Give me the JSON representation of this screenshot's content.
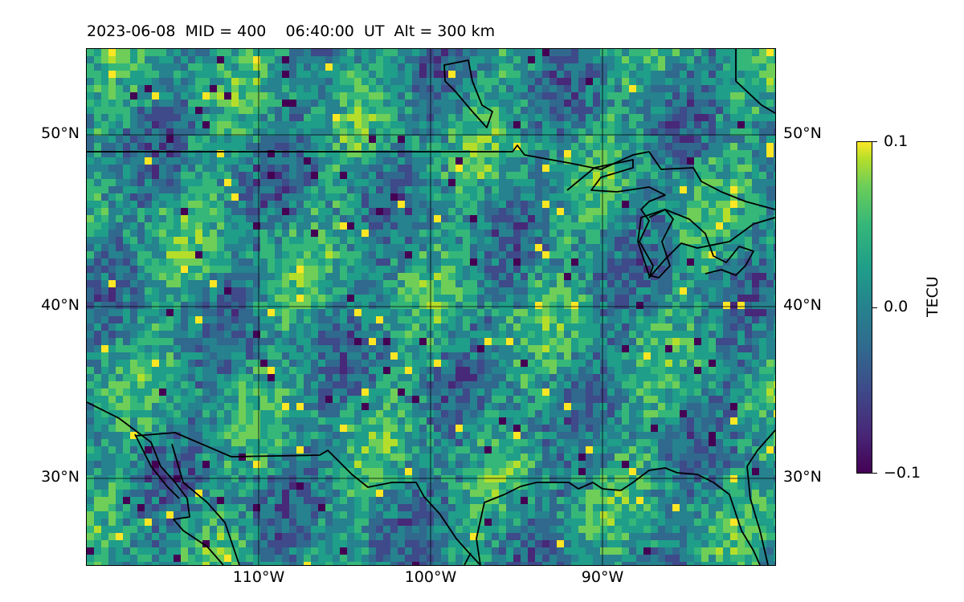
{
  "map": {
    "title": "2023-06-08  MID = 400    06:40:00  UT  Alt = 300 km",
    "lat_labels": [
      "50°N",
      "40°N",
      "30°N"
    ],
    "lon_labels": [
      "110°W",
      "100°W",
      "90°W"
    ],
    "extent": {
      "lon_min": -120,
      "lon_max": -80,
      "lat_min": 25,
      "lat_max": 55
    },
    "field": "TEC perturbation",
    "colormap": "viridis",
    "gridlines": true,
    "coastlines": true,
    "borders": true
  },
  "colorbar": {
    "label": "TECU",
    "ticks": [
      "0.1",
      "0.0",
      "−0.1"
    ],
    "min": -0.1,
    "max": 0.1
  },
  "colors": {
    "low": "#440154",
    "mid": "#21918c",
    "high": "#fde725",
    "outline": "#000000"
  }
}
